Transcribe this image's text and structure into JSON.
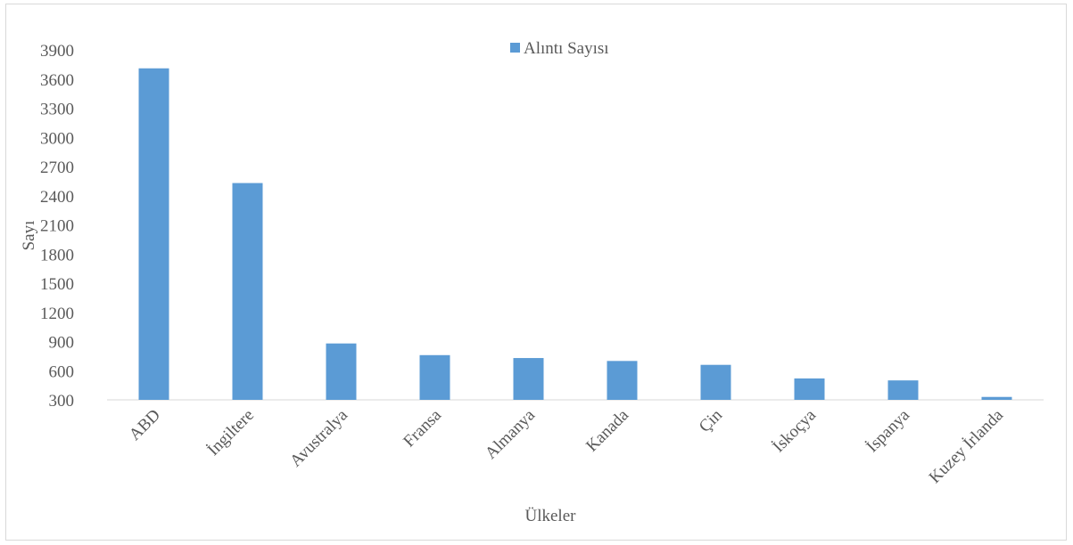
{
  "chart_data": {
    "type": "bar",
    "title": "",
    "xlabel": "Ülkeler",
    "ylabel": "Sayı",
    "ylim": [
      300,
      3900
    ],
    "yticks": [
      300,
      600,
      900,
      1200,
      1500,
      1800,
      2100,
      2400,
      2700,
      3000,
      3300,
      3600,
      3900
    ],
    "categories": [
      "ABD",
      "İngiltere",
      "Avustralya",
      "Fransa",
      "Almanya",
      "Kanada",
      "Çin",
      "İskoçya",
      "İspanya",
      "Kuzey İrlanda"
    ],
    "series": [
      {
        "name": "Alıntı Sayısı",
        "color": "#5b9bd5",
        "values": [
          3710,
          2530,
          880,
          760,
          730,
          700,
          660,
          520,
          500,
          330
        ]
      }
    ],
    "legend": "top-center",
    "grid": false
  }
}
